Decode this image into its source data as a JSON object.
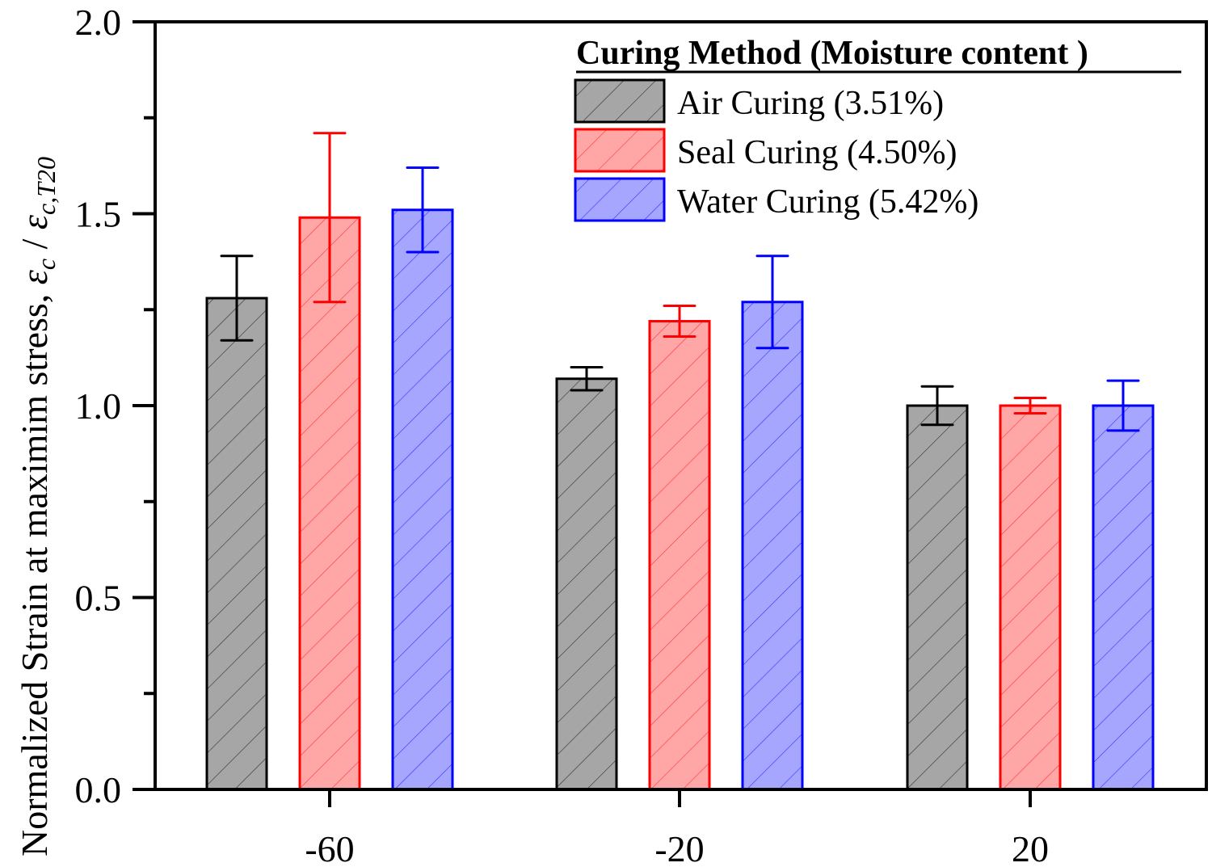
{
  "chart_data": {
    "type": "bar",
    "title": "",
    "xlabel": "",
    "ylabel": "Normalized Strain at maximim stress, ",
    "ylabel_math": {
      "eps": "ε",
      "sub_c": "c",
      "slash": " / ",
      "sub_cT20": "c,T20"
    },
    "categories": [
      "-60",
      "-20",
      "20"
    ],
    "ylim": [
      0.0,
      2.0
    ],
    "yticks": [
      0.0,
      0.5,
      1.0,
      1.5,
      2.0
    ],
    "ytick_labels": [
      "0.0",
      "0.5",
      "1.0",
      "1.5",
      "2.0"
    ],
    "grid": false,
    "legend": {
      "title": "Curing Method (Moisture content )",
      "placement": "top-right"
    },
    "series": [
      {
        "name": "Air Curing (3.51%)",
        "edge_color": "#000000",
        "fill_color": "#a6a6a6",
        "hatch_color": "#333333",
        "values": [
          1.28,
          1.07,
          1.0
        ],
        "errors": [
          0.11,
          0.03,
          0.05
        ]
      },
      {
        "name": "Seal Curing (4.50%)",
        "edge_color": "#ff0000",
        "fill_color": "#ffa6a6",
        "hatch_color": "#ff3333",
        "values": [
          1.49,
          1.22,
          1.0
        ],
        "errors": [
          0.22,
          0.04,
          0.02
        ]
      },
      {
        "name": "Water Curing (5.42%)",
        "edge_color": "#0000ff",
        "fill_color": "#a6a6ff",
        "hatch_color": "#3333ff",
        "values": [
          1.51,
          1.27,
          1.0
        ],
        "errors": [
          0.11,
          0.12,
          0.065
        ]
      }
    ]
  }
}
